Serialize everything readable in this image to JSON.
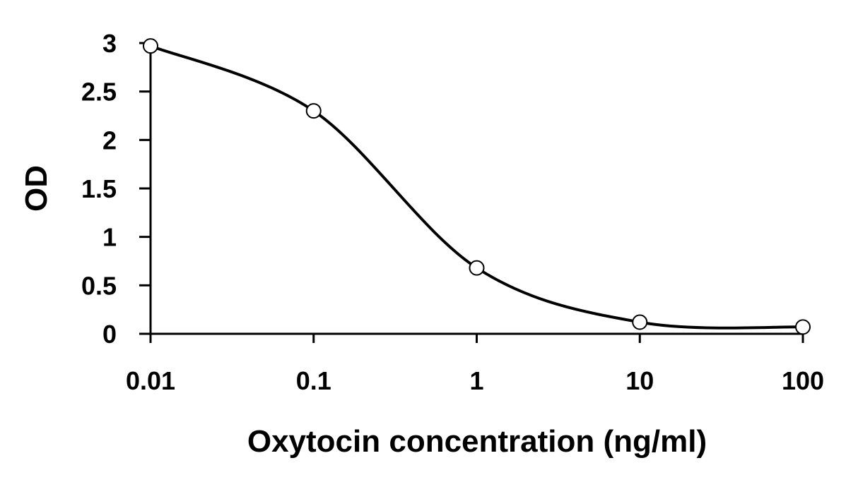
{
  "chart_data": {
    "type": "line",
    "title": "",
    "xlabel": "Oxytocin concentration (ng/ml)",
    "ylabel": "OD",
    "x_scale": "log",
    "x": [
      0.01,
      0.1,
      1,
      10,
      100
    ],
    "x_tick_labels": [
      "0.01",
      "0.1",
      "1",
      "10",
      "100"
    ],
    "y_ticks": [
      0,
      0.5,
      1,
      1.5,
      2,
      2.5,
      3
    ],
    "y_tick_labels": [
      "0",
      "0.5",
      "1",
      "1.5",
      "2",
      "2.5",
      "3"
    ],
    "xlim": [
      0.01,
      100
    ],
    "ylim": [
      0,
      3
    ],
    "grid": false,
    "legend": "none",
    "series": [
      {
        "values": [
          2.97,
          2.3,
          0.68,
          0.12,
          0.07
        ],
        "line_color": "#000000",
        "marker": "open-circle",
        "smooth": true
      }
    ]
  }
}
